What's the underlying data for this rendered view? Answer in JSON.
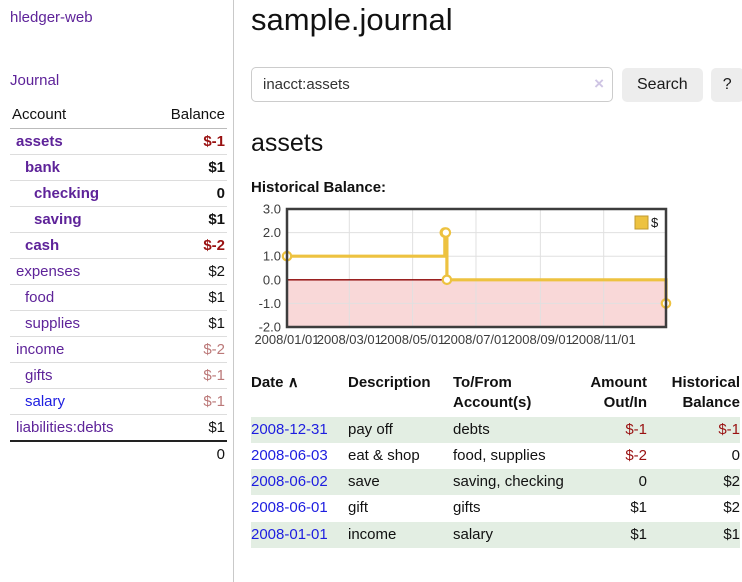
{
  "app": {
    "title": "hledger-web"
  },
  "colors": {
    "accent_purple": "#5e2399",
    "link_blue": "#1d1de0",
    "negative_strong": "#991111",
    "negative_soft": "#bb7878",
    "row_green": "#e3eee3",
    "series_gold": "#edc240",
    "negative_band": "#f9d8d8",
    "zero_line": "#8b0000"
  },
  "sidebar": {
    "nav": {
      "journal_label": "Journal"
    },
    "accounts_table": {
      "headers": {
        "account": "Account",
        "balance": "Balance"
      },
      "rows": [
        {
          "name": "assets",
          "balance": "$-1",
          "indent": 1,
          "bold": true,
          "neg": "strong"
        },
        {
          "name": "bank",
          "balance": "$1",
          "indent": 2,
          "bold": true
        },
        {
          "name": "checking",
          "balance": "0",
          "indent": 3,
          "bold": true
        },
        {
          "name": "saving",
          "balance": "$1",
          "indent": 3,
          "bold": true
        },
        {
          "name": "cash",
          "balance": "$-2",
          "indent": 2,
          "bold": true,
          "neg": "strong"
        },
        {
          "name": "expenses",
          "balance": "$2",
          "indent": 1
        },
        {
          "name": "food",
          "balance": "$1",
          "indent": 2
        },
        {
          "name": "supplies",
          "balance": "$1",
          "indent": 2
        },
        {
          "name": "income",
          "balance": "$-2",
          "indent": 1,
          "neg": "soft"
        },
        {
          "name": "gifts",
          "balance": "$-1",
          "indent": 2,
          "neg": "soft"
        },
        {
          "name": "salary",
          "balance": "$-1",
          "indent": 2,
          "neg": "soft",
          "link_style": "unvisited"
        },
        {
          "name": "liabilities:debts",
          "balance": "$1",
          "indent": 1
        }
      ],
      "total": "0"
    }
  },
  "header": {
    "title": "sample.journal"
  },
  "search": {
    "value": "inacct:assets",
    "clear_icon": "×",
    "button_label": "Search",
    "help_label": "?"
  },
  "account_page": {
    "heading": "assets",
    "chart_title": "Historical Balance:"
  },
  "chart_data": {
    "type": "line",
    "title": "Historical Balance:",
    "step": true,
    "xlim": [
      "2008-01-01",
      "2008-12-31"
    ],
    "ylim": [
      -2,
      3
    ],
    "grid": true,
    "legend": {
      "label": "$",
      "position": "top-right"
    },
    "series": [
      {
        "name": "$",
        "color": "#edc240",
        "points": [
          [
            "2008-01-01",
            1
          ],
          [
            "2008-06-01",
            2
          ],
          [
            "2008-06-02",
            2
          ],
          [
            "2008-06-03",
            0
          ],
          [
            "2008-12-31",
            -1
          ]
        ]
      }
    ],
    "y_ticks": [
      {
        "value": 3,
        "label": "3.0"
      },
      {
        "value": 2,
        "label": "2.0"
      },
      {
        "value": 1,
        "label": "1.0"
      },
      {
        "value": 0,
        "label": "0.0"
      },
      {
        "value": -1,
        "label": "-1.0"
      },
      {
        "value": -2,
        "label": "-2.0"
      }
    ],
    "x_ticks": [
      {
        "date": "2008-01-01",
        "label": "2008/01/01"
      },
      {
        "date": "2008-03-01",
        "label": "2008/03/01"
      },
      {
        "date": "2008-05-01",
        "label": "2008/05/01"
      },
      {
        "date": "2008-07-01",
        "label": "2008/07/01"
      },
      {
        "date": "2008-09-01",
        "label": "2008/09/01"
      },
      {
        "date": "2008-11-01",
        "label": "2008/11/01"
      }
    ],
    "negative_band_color": "#f9d8d8",
    "zero_line_color": "#8b0000"
  },
  "transactions_table": {
    "headers": {
      "date": "Date",
      "sort_asc_icon": "∧",
      "description": "Description",
      "account": "To/From Account(s)",
      "amount": "Amount Out/In",
      "balance": "Historical Balance"
    },
    "rows": [
      {
        "date": "2008-12-31",
        "description": "pay off",
        "accounts": "debts",
        "amount": "$-1",
        "amount_neg": true,
        "balance": "$-1",
        "balance_neg": true
      },
      {
        "date": "2008-06-03",
        "description": "eat & shop",
        "accounts": "food, supplies",
        "amount": "$-2",
        "amount_neg": true,
        "balance": "0",
        "balance_neg": false
      },
      {
        "date": "2008-06-02",
        "description": "save",
        "accounts": "saving, checking",
        "amount": "0",
        "amount_neg": false,
        "balance": "$2",
        "balance_neg": false
      },
      {
        "date": "2008-06-01",
        "description": "gift",
        "accounts": "gifts",
        "amount": "$1",
        "amount_neg": false,
        "balance": "$2",
        "balance_neg": false
      },
      {
        "date": "2008-01-01",
        "description": "income",
        "accounts": "salary",
        "amount": "$1",
        "amount_neg": false,
        "balance": "$1",
        "balance_neg": false
      }
    ]
  }
}
